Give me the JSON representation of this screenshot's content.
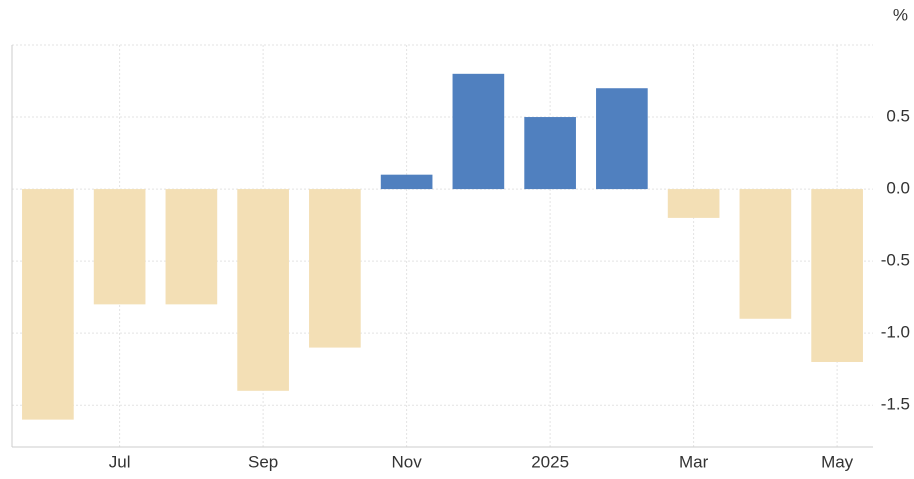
{
  "chart_data": {
    "type": "bar",
    "unit": "%",
    "categories": [
      null,
      "Jul",
      null,
      "Sep",
      null,
      "Nov",
      null,
      "2025",
      null,
      "Mar",
      null,
      "May"
    ],
    "values": [
      -1.6,
      -0.8,
      -0.8,
      -1.4,
      -1.1,
      0.1,
      0.8,
      0.5,
      0.7,
      -0.2,
      -0.9,
      -1.2
    ],
    "positive_color": "#5080bf",
    "negative_color": "#f3dfb5",
    "ylim": [
      -1.79,
      1.0
    ],
    "yticks": [
      {
        "value": -1.5,
        "label": "-1.5"
      },
      {
        "value": -1.0,
        "label": "-1.0"
      },
      {
        "value": -0.5,
        "label": "-0.5"
      },
      {
        "value": 0,
        "label": "0.0"
      },
      {
        "value": 0.5,
        "label": "0.5"
      }
    ],
    "grid": true
  }
}
